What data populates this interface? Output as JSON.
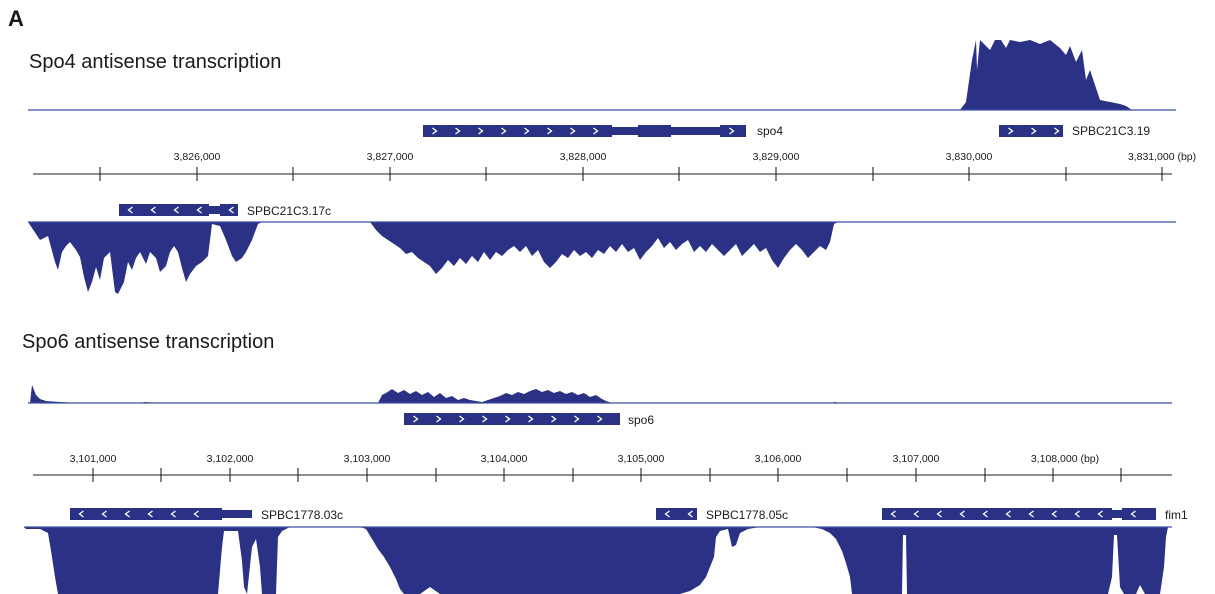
{
  "panel_label": "A",
  "panel1": {
    "title": "Spo4 antisense transcription",
    "axis_ticks": [
      "3,826,000",
      "3,827,000",
      "3,828,000",
      "3,829,000",
      "3,830,000",
      "3,831,000 (bp)"
    ],
    "genes_top": [
      {
        "name": "spo4",
        "strand": "+"
      },
      {
        "name": "SPBC21C3.19",
        "strand": "+"
      }
    ],
    "genes_bottom": [
      {
        "name": "SPBC21C3.17c",
        "strand": "-"
      }
    ]
  },
  "panel2": {
    "title": "Spo6 antisense transcription",
    "axis_ticks": [
      "3,101,000",
      "3,102,000",
      "3,103,000",
      "3,104,000",
      "3,105,000",
      "3,106,000",
      "3,107,000",
      "3,108,000 (bp)"
    ],
    "genes_top": [
      {
        "name": "spo6",
        "strand": "+"
      }
    ],
    "genes_bottom": [
      {
        "name": "SPBC1778.03c",
        "strand": "-"
      },
      {
        "name": "SPBC1778.05c",
        "strand": "-"
      },
      {
        "name": "fim1",
        "strand": "-"
      }
    ]
  },
  "colors": {
    "track": "#2b3184",
    "baseline": "#3d4fa8",
    "axis": "#222222"
  }
}
